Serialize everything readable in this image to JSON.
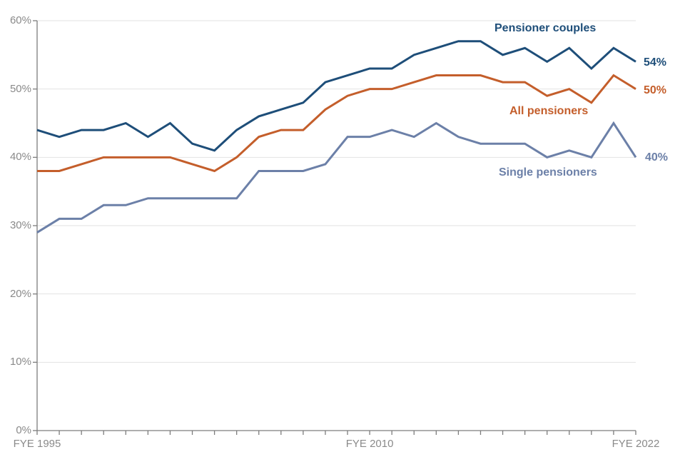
{
  "chart_data": {
    "type": "line",
    "title": "",
    "x_axis": {
      "description": "Financial year ending, annual points from FYE 1995 to FYE 2022",
      "labeled_ticks": [
        {
          "index": 0,
          "label": "FYE 1995"
        },
        {
          "index": 15,
          "label": "FYE 2010"
        },
        {
          "index": 27,
          "label": "FYE 2022"
        }
      ],
      "tick_count": 28
    },
    "y_axis": {
      "min": 0,
      "max": 60,
      "ticks": [
        {
          "value": 60,
          "label": "60%"
        },
        {
          "value": 50,
          "label": "50%"
        },
        {
          "value": 40,
          "label": "40%"
        },
        {
          "value": 30,
          "label": "30%"
        },
        {
          "value": 20,
          "label": "20%"
        },
        {
          "value": 10,
          "label": "10%"
        },
        {
          "value": 0,
          "label": "0%"
        }
      ]
    },
    "grid": "horizontal",
    "legend_position": "inline-annotations",
    "colors": {
      "grid": "#e2e2e2",
      "axis": "#7d7d7d",
      "tick_text": "#8a8a8a"
    },
    "series": [
      {
        "name": "Pensioner couples",
        "color": "#1e4e79",
        "end_label": "54%",
        "values": [
          44,
          43,
          44,
          44,
          45,
          43,
          45,
          42,
          41,
          44,
          46,
          47,
          48,
          51,
          52,
          53,
          53,
          55,
          56,
          57,
          57,
          55,
          56,
          54,
          56,
          53,
          56,
          54
        ]
      },
      {
        "name": "All pensioners",
        "color": "#c45e2b",
        "end_label": "50%",
        "values": [
          38,
          38,
          39,
          40,
          40,
          40,
          40,
          39,
          38,
          40,
          43,
          44,
          44,
          47,
          49,
          50,
          50,
          51,
          52,
          52,
          52,
          51,
          51,
          49,
          50,
          48,
          52,
          50
        ]
      },
      {
        "name": "Single pensioners",
        "color": "#6c80a8",
        "end_label": "40%",
        "values": [
          29,
          31,
          31,
          33,
          33,
          34,
          34,
          34,
          34,
          34,
          38,
          38,
          38,
          39,
          43,
          43,
          44,
          43,
          45,
          43,
          42,
          42,
          42,
          40,
          41,
          40,
          45,
          40
        ]
      }
    ]
  }
}
